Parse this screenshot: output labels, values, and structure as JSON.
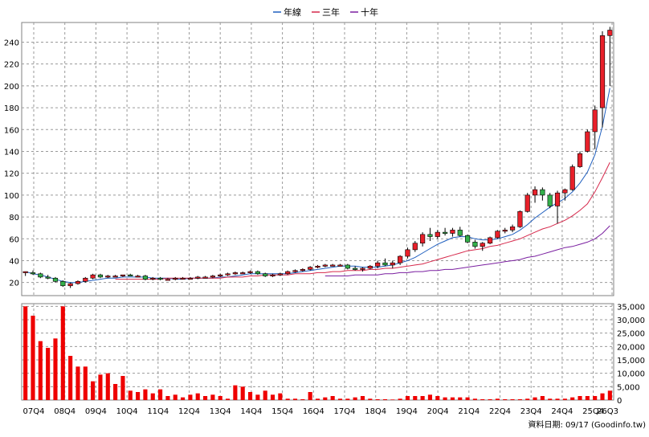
{
  "chart_data": [
    {
      "type": "candlestick",
      "title": "",
      "legend": {
        "placement": "top-center",
        "entries": [
          {
            "name": "年線",
            "color": "#1f5fbf"
          },
          {
            "name": "三年",
            "color": "#d6284b"
          },
          {
            "name": "十年",
            "color": "#7a1fa0"
          }
        ]
      },
      "grid": true,
      "ylim": [
        8,
        258
      ],
      "yticks": [
        "20",
        "40",
        "60",
        "80",
        "100",
        "120",
        "140",
        "160",
        "180",
        "200",
        "220",
        "240"
      ],
      "xticks": [
        "07Q4",
        "08Q4",
        "09Q4",
        "10Q4",
        "11Q4",
        "12Q4",
        "13Q4",
        "14Q4",
        "15Q4",
        "16Q4",
        "17Q4",
        "18Q4",
        "19Q4",
        "20Q4",
        "21Q4",
        "22Q4",
        "23Q4",
        "24Q4",
        "25Q4",
        "26Q3"
      ],
      "candles": [
        [
          30,
          30,
          26,
          30
        ],
        [
          29,
          31,
          27,
          28
        ],
        [
          28,
          29,
          24,
          25
        ],
        [
          25,
          27,
          23,
          24
        ],
        [
          24,
          25,
          20,
          21
        ],
        [
          21,
          22,
          16,
          17
        ],
        [
          17,
          20,
          15,
          19
        ],
        [
          19,
          22,
          18,
          21
        ],
        [
          21,
          25,
          20,
          24
        ],
        [
          24,
          28,
          23,
          27
        ],
        [
          27,
          28,
          24,
          25
        ],
        [
          25,
          27,
          24,
          26
        ],
        [
          26,
          27,
          25,
          26
        ],
        [
          26,
          27,
          25,
          27
        ],
        [
          27,
          28,
          26,
          26
        ],
        [
          26,
          27,
          25,
          26
        ],
        [
          26,
          27,
          22,
          23
        ],
        [
          23,
          25,
          22,
          24
        ],
        [
          24,
          25,
          22,
          23
        ],
        [
          23,
          24,
          22,
          23
        ],
        [
          23,
          25,
          22,
          24
        ],
        [
          24,
          25,
          23,
          24
        ],
        [
          24,
          25,
          23,
          24
        ],
        [
          24,
          26,
          23,
          25
        ],
        [
          25,
          26,
          24,
          25
        ],
        [
          25,
          27,
          24,
          26
        ],
        [
          26,
          28,
          25,
          27
        ],
        [
          27,
          29,
          26,
          28
        ],
        [
          28,
          30,
          27,
          29
        ],
        [
          29,
          30,
          28,
          29
        ],
        [
          29,
          31,
          28,
          30
        ],
        [
          30,
          31,
          27,
          28
        ],
        [
          28,
          29,
          25,
          26
        ],
        [
          26,
          28,
          25,
          27
        ],
        [
          27,
          29,
          26,
          28
        ],
        [
          28,
          31,
          27,
          30
        ],
        [
          30,
          32,
          29,
          31
        ],
        [
          31,
          33,
          30,
          32
        ],
        [
          32,
          35,
          31,
          34
        ],
        [
          34,
          36,
          33,
          35
        ],
        [
          35,
          37,
          34,
          36
        ],
        [
          36,
          37,
          35,
          36
        ],
        [
          36,
          37,
          35,
          36
        ],
        [
          36,
          37,
          32,
          33
        ],
        [
          33,
          35,
          31,
          32
        ],
        [
          32,
          34,
          30,
          33
        ],
        [
          33,
          36,
          32,
          35
        ],
        [
          35,
          40,
          33,
          38
        ],
        [
          38,
          42,
          35,
          36
        ],
        [
          36,
          40,
          33,
          38
        ],
        [
          38,
          45,
          36,
          44
        ],
        [
          44,
          52,
          42,
          50
        ],
        [
          50,
          58,
          48,
          56
        ],
        [
          56,
          66,
          53,
          64
        ],
        [
          64,
          70,
          58,
          62
        ],
        [
          62,
          68,
          60,
          66
        ],
        [
          66,
          70,
          63,
          65
        ],
        [
          65,
          70,
          62,
          68
        ],
        [
          68,
          71,
          62,
          63
        ],
        [
          63,
          64,
          56,
          57
        ],
        [
          57,
          59,
          51,
          53
        ],
        [
          53,
          57,
          49,
          56
        ],
        [
          56,
          62,
          55,
          61
        ],
        [
          61,
          68,
          60,
          67
        ],
        [
          67,
          70,
          65,
          68
        ],
        [
          68,
          73,
          66,
          71
        ],
        [
          71,
          86,
          70,
          85
        ],
        [
          85,
          102,
          84,
          100
        ],
        [
          100,
          108,
          93,
          105
        ],
        [
          105,
          107,
          95,
          100
        ],
        [
          100,
          102,
          88,
          90
        ],
        [
          90,
          104,
          74,
          102
        ],
        [
          102,
          106,
          95,
          105
        ],
        [
          105,
          128,
          104,
          126
        ],
        [
          126,
          140,
          125,
          138
        ],
        [
          140,
          160,
          139,
          158
        ],
        [
          158,
          182,
          142,
          178
        ],
        [
          180,
          250,
          162,
          246
        ],
        [
          246,
          254,
          200,
          251
        ]
      ],
      "series": [
        {
          "name": "年線",
          "color": "#1f5fbf",
          "values": [
            30,
            28,
            27,
            25,
            23,
            21,
            20,
            20,
            21,
            22,
            23,
            24,
            24,
            25,
            25,
            25,
            25,
            24,
            24,
            24,
            23,
            23,
            24,
            24,
            24,
            24,
            25,
            25,
            26,
            27,
            28,
            28,
            28,
            28,
            28,
            28,
            29,
            30,
            31,
            32,
            33,
            34,
            35,
            35,
            35,
            34,
            34,
            34,
            35,
            36,
            38,
            40,
            43,
            47,
            51,
            55,
            58,
            61,
            62,
            62,
            60,
            59,
            59,
            60,
            62,
            64,
            68,
            73,
            79,
            84,
            89,
            93,
            97,
            103,
            111,
            121,
            137,
            163,
            198
          ]
        },
        {
          "name": "三年",
          "color": "#d6284b",
          "values": [
            null,
            null,
            null,
            null,
            null,
            null,
            null,
            null,
            null,
            null,
            null,
            null,
            23,
            23,
            23,
            23,
            23,
            23,
            23,
            24,
            24,
            24,
            24,
            24,
            24,
            24,
            24,
            25,
            25,
            25,
            26,
            26,
            27,
            27,
            27,
            27,
            28,
            28,
            28,
            29,
            29,
            30,
            30,
            31,
            31,
            31,
            32,
            32,
            33,
            33,
            34,
            35,
            36,
            37,
            39,
            41,
            43,
            45,
            47,
            49,
            50,
            51,
            53,
            54,
            56,
            58,
            60,
            63,
            66,
            69,
            71,
            74,
            77,
            81,
            86,
            92,
            103,
            116,
            130
          ]
        },
        {
          "name": "十年",
          "color": "#7a1fa0",
          "values": [
            null,
            null,
            null,
            null,
            null,
            null,
            null,
            null,
            null,
            null,
            null,
            null,
            null,
            null,
            null,
            null,
            null,
            null,
            null,
            null,
            null,
            null,
            null,
            null,
            null,
            null,
            null,
            null,
            null,
            null,
            null,
            null,
            null,
            null,
            null,
            null,
            null,
            null,
            null,
            null,
            26,
            26,
            26,
            26,
            27,
            27,
            27,
            27,
            28,
            28,
            29,
            29,
            30,
            30,
            31,
            31,
            32,
            32,
            33,
            34,
            35,
            36,
            37,
            38,
            39,
            40,
            41,
            43,
            44,
            46,
            48,
            50,
            52,
            53,
            55,
            57,
            60,
            65,
            72
          ]
        }
      ]
    },
    {
      "type": "bar",
      "ylim": [
        0,
        36000
      ],
      "yticks": [
        "0",
        "5,000",
        "10,000",
        "15,000",
        "20,000",
        "25,000",
        "30,000",
        "35,000"
      ],
      "colors": {
        "up": "#ee0000",
        "down": "#ee0000"
      },
      "values": [
        35000,
        31500,
        22000,
        19500,
        23000,
        35000,
        16500,
        12500,
        12500,
        7000,
        9500,
        10000,
        6000,
        9000,
        3500,
        3000,
        4000,
        2500,
        4000,
        1500,
        2000,
        1000,
        2000,
        2500,
        1500,
        2000,
        1500,
        500,
        5500,
        5000,
        3000,
        2000,
        3500,
        2000,
        2500,
        500,
        500,
        300,
        3000,
        500,
        1000,
        1500,
        500,
        500,
        1000,
        1500,
        500,
        300,
        300,
        200,
        500,
        1500,
        1500,
        1500,
        2000,
        1500,
        1000,
        1000,
        1000,
        1000,
        500,
        300,
        300,
        500,
        300,
        300,
        300,
        500,
        1000,
        1500,
        500,
        500,
        500,
        1000,
        1500,
        1500,
        1500,
        2500,
        3500
      ]
    }
  ],
  "footer": {
    "text": "資料日期: 09/17  (Goodinfo.tw)"
  }
}
